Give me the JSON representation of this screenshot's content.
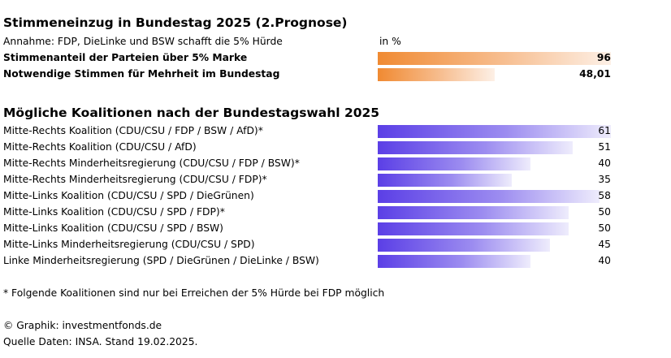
{
  "title1": "Stimmeneinzug in Bundestag 2025 (2.Prognose)",
  "assumption": "Annahme: FDP, DieLinke und BSW schafft die 5% Hürde",
  "unit": "in %",
  "title2": "Mögliche Koalitionen nach der Bundestagswahl 2025",
  "footnote": "* Folgende Koalitionen sind nur bei Erreichen der 5% Hürde bei FDP möglich",
  "credit": "© Graphik: investmentfonds.de",
  "source": "Quelle Daten: INSA. Stand 19.02.2025.",
  "colors": {
    "orange": "#f08a32",
    "purple": "#5b3fe6"
  },
  "chart_data": [
    {
      "type": "bar",
      "orientation": "horizontal",
      "title": "Stimmeneinzug in Bundestag 2025 (2.Prognose)",
      "unit": "in %",
      "xlim": [
        0,
        96
      ],
      "categories": [
        "Stimmenanteil der Parteien über 5% Marke",
        "Notwendige Stimmen für Mehrheit im Bundestag"
      ],
      "values": [
        96,
        48.01
      ],
      "labels": [
        "96",
        "48,01"
      ]
    },
    {
      "type": "bar",
      "orientation": "horizontal",
      "title": "Mögliche Koalitionen nach der Bundestagswahl 2025",
      "xlim": [
        0,
        61
      ],
      "categories": [
        "Mitte-Rechts Koalition (CDU/CSU / FDP / BSW / AfD)*",
        "Mitte-Rechts Koalition (CDU/CSU / AfD)",
        "Mitte-Rechts Minderheitsregierung (CDU/CSU / FDP / BSW)*",
        "Mitte-Rechts Minderheitsregierung (CDU/CSU / FDP)*",
        "Mitte-Links Koalition (CDU/CSU / SPD / DieGrünen)",
        "Mitte-Links Koalition (CDU/CSU / SPD / FDP)*",
        "Mitte-Links Koalition (CDU/CSU / SPD / BSW)",
        "Mitte-Links Minderheitsregierung (CDU/CSU / SPD)",
        "Linke Minderheitsregierung (SPD / DieGrünen / DieLinke / BSW)"
      ],
      "values": [
        61,
        51,
        40,
        35,
        58,
        50,
        50,
        45,
        40
      ],
      "labels": [
        "61",
        "51",
        "40",
        "35",
        "58",
        "50",
        "50",
        "45",
        "40"
      ]
    }
  ]
}
